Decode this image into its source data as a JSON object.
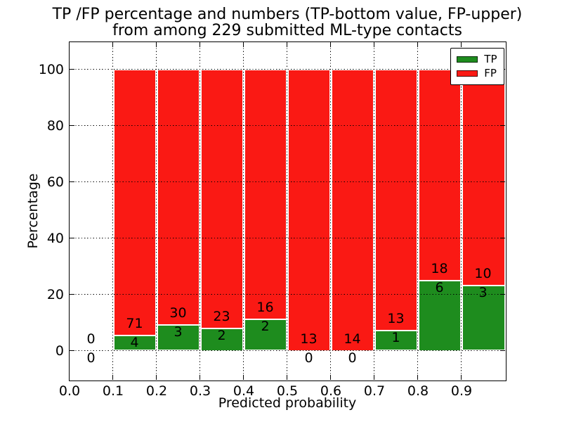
{
  "figure": {
    "title_line1": "TP /FP percentage and numbers (TP-bottom value, FP-upper)",
    "title_line2": "from among 229 submitted ML-type contacts"
  },
  "chart_data": {
    "type": "bar",
    "stacked": true,
    "normalized": "each drawn bar totals 100% of its bin; annotated numbers are raw counts",
    "title": "TP /FP percentage and numbers (TP-bottom value, FP-upper) from among 229 submitted ML-type contacts",
    "xlabel": "Predicted probability",
    "ylabel": "Percentage",
    "total_contacts": 229,
    "bin_width": 0.1,
    "categories": [
      "0.0-0.1",
      "0.1-0.2",
      "0.2-0.3",
      "0.3-0.4",
      "0.4-0.5",
      "0.5-0.6",
      "0.6-0.7",
      "0.7-0.8",
      "0.8-0.9",
      "0.9-1.0"
    ],
    "bin_starts": [
      0.0,
      0.1,
      0.2,
      0.3,
      0.4,
      0.5,
      0.6,
      0.7,
      0.8,
      0.9
    ],
    "series": [
      {
        "name": "TP",
        "color": "#1e8c1e",
        "counts": [
          0,
          4,
          3,
          2,
          2,
          0,
          0,
          1,
          6,
          3
        ]
      },
      {
        "name": "FP",
        "color": "#fa1914",
        "counts": [
          0,
          71,
          30,
          23,
          16,
          13,
          14,
          13,
          18,
          10
        ]
      }
    ],
    "tp_percent_of_bin": [
      0,
      5.33,
      9.09,
      8.0,
      11.11,
      0,
      0,
      7.14,
      25.0,
      23.08
    ],
    "xticks": [
      "0.0",
      "0.1",
      "0.2",
      "0.3",
      "0.4",
      "0.5",
      "0.6",
      "0.7",
      "0.8",
      "0.9"
    ],
    "yticks": [
      0,
      20,
      40,
      60,
      80,
      100
    ],
    "xlim": [
      0.0,
      1.0
    ],
    "ylim": [
      -10.25,
      109.75
    ],
    "grid": {
      "style": "dotted",
      "color": "#000000",
      "on": true
    },
    "legend": {
      "position": "upper right",
      "entries": [
        {
          "label": "TP",
          "color": "#1e8c1e"
        },
        {
          "label": "FP",
          "color": "#fa1914"
        }
      ]
    }
  }
}
